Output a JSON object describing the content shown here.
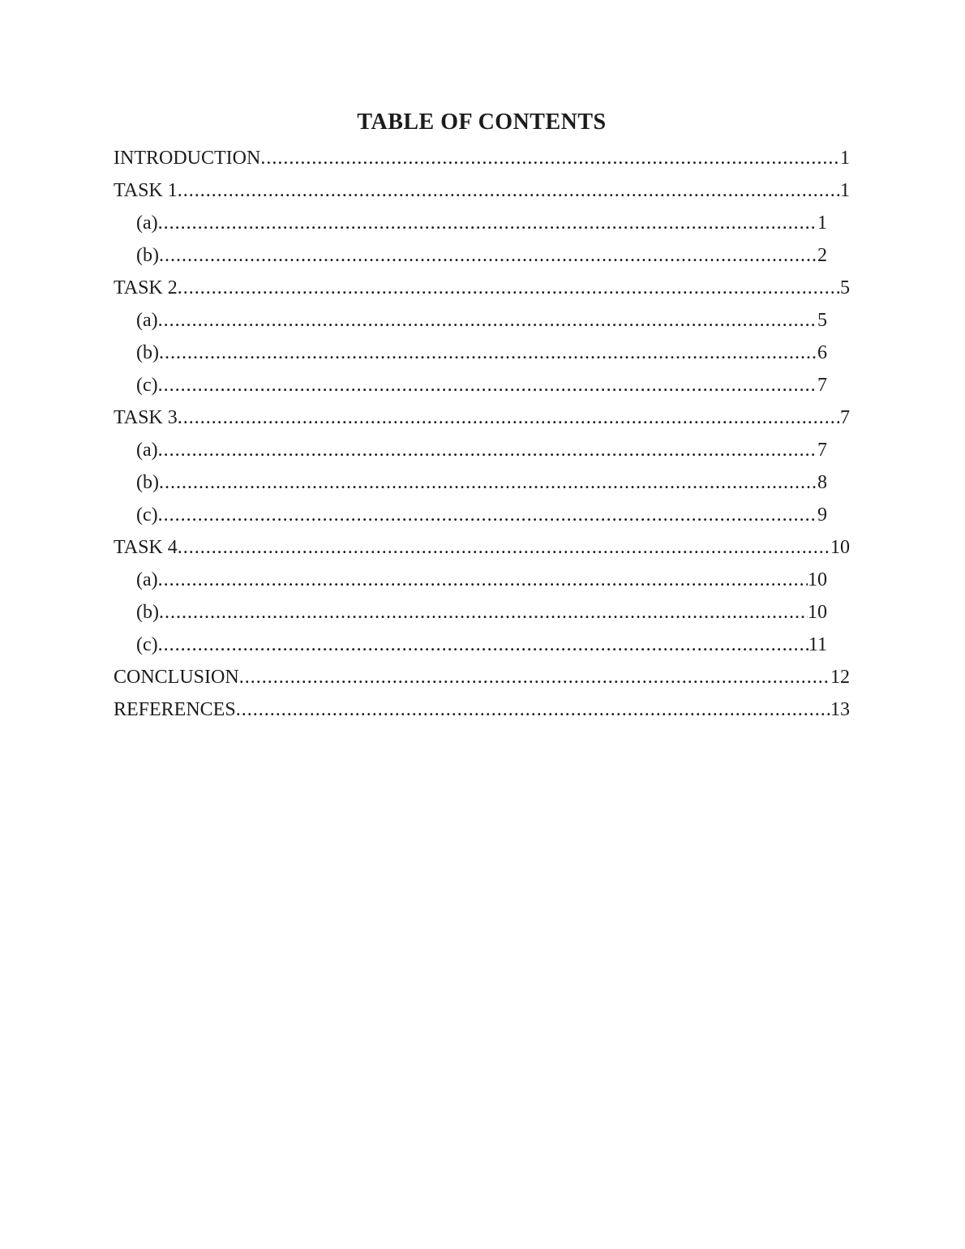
{
  "document": {
    "title": "TABLE OF CONTENTS",
    "toc": {
      "entries": [
        {
          "label": "INTRODUCTION",
          "page": "1",
          "level": 0
        },
        {
          "label": "TASK 1",
          "page": "1",
          "level": 0
        },
        {
          "label": "(a)",
          "page": "1",
          "level": 1
        },
        {
          "label": "(b)",
          "page": "2",
          "level": 1
        },
        {
          "label": "TASK 2",
          "page": "5",
          "level": 0
        },
        {
          "label": "(a)",
          "page": "5",
          "level": 1
        },
        {
          "label": "(b)",
          "page": "6",
          "level": 1
        },
        {
          "label": "(c)",
          "page": "7",
          "level": 1
        },
        {
          "label": "TASK 3",
          "page": "7",
          "level": 0
        },
        {
          "label": "(a)",
          "page": "7",
          "level": 1
        },
        {
          "label": "(b)",
          "page": "8",
          "level": 1
        },
        {
          "label": "(c)",
          "page": "9",
          "level": 1
        },
        {
          "label": "TASK 4",
          "page": "10",
          "level": 0
        },
        {
          "label": "(a)",
          "page": "10",
          "level": 1
        },
        {
          "label": "(b)",
          "page": "10",
          "level": 1
        },
        {
          "label": "(c)",
          "page": "11",
          "level": 1
        },
        {
          "label": "CONCLUSION",
          "page": "12",
          "level": 0
        },
        {
          "label": "REFERENCES",
          "page": "13",
          "level": 0
        }
      ]
    },
    "colors": {
      "page_background": "#ffffff",
      "text": "#1b1b1b"
    }
  }
}
